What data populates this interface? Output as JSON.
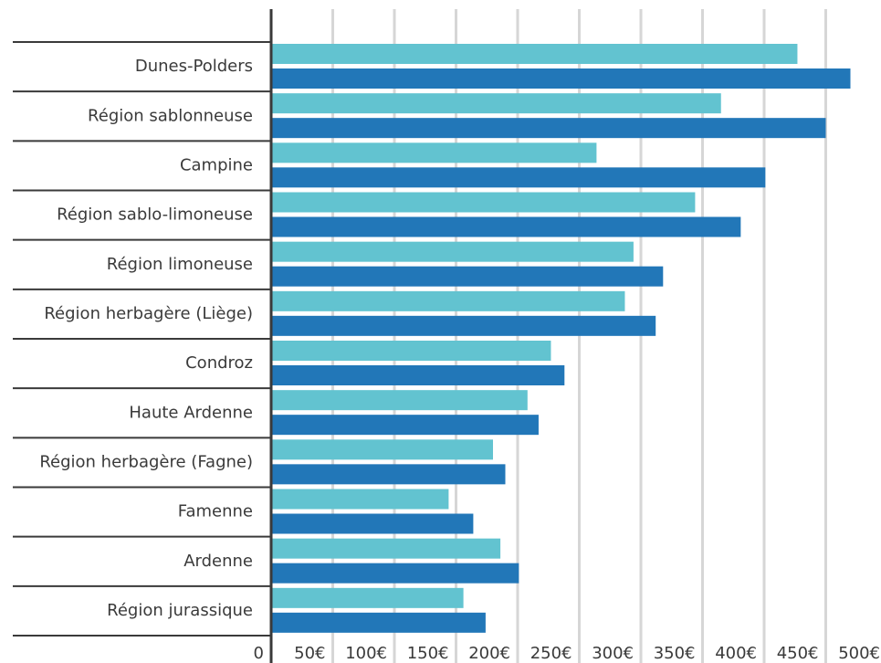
{
  "chart_data": {
    "type": "barh",
    "categories": [
      "Dunes-Polders",
      "Région sablonneuse",
      "Campine",
      "Région sablo-limoneuse",
      "Région limoneuse",
      "Région herbagère (Liège)",
      "Condroz",
      "Haute Ardenne",
      "Région herbagère (Fagne)",
      "Famenne",
      "Ardenne",
      "Région jurassique"
    ],
    "series": [
      {
        "color": "#62c3d0",
        "values": [
          427,
          365,
          264,
          344,
          294,
          287,
          227,
          208,
          180,
          144,
          186,
          156
        ]
      },
      {
        "color": "#2277b8",
        "values": [
          470,
          450,
          401,
          381,
          318,
          312,
          238,
          217,
          190,
          164,
          201,
          174
        ]
      }
    ],
    "xlim": [
      0,
      500
    ],
    "xticks": [
      0,
      {
        "value": 50,
        "label": "50€"
      },
      {
        "value": 100,
        "label": "100€"
      },
      {
        "value": 150,
        "label": "150€"
      },
      {
        "value": 200,
        "label": "200€"
      },
      {
        "value": 250,
        "label": "250€"
      },
      {
        "value": 300,
        "label": "300€"
      },
      {
        "value": 350,
        "label": "350€"
      },
      {
        "value": 400,
        "label": "400€"
      },
      {
        "value": 450,
        "label": "450€"
      },
      {
        "value": 500,
        "label": "500€"
      }
    ],
    "grid": true
  }
}
